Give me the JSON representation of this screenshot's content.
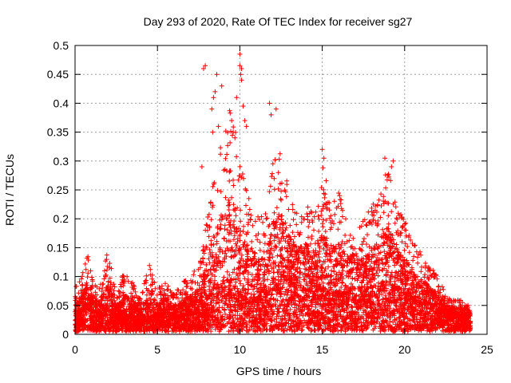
{
  "chart_data": {
    "type": "scatter",
    "title": "Day 293 of 2020, Rate Of TEC Index for receiver sg27",
    "xlabel": "GPS time / hours",
    "ylabel": "ROTI / TECUs",
    "xlim": [
      0,
      25
    ],
    "ylim": [
      0,
      0.5
    ],
    "xticks": [
      0,
      5,
      10,
      15,
      20,
      25
    ],
    "yticks": [
      0,
      0.05,
      0.1,
      0.15,
      0.2,
      0.25,
      0.3,
      0.35,
      0.4,
      0.45,
      0.5
    ],
    "xtick_labels": [
      "0",
      "5",
      "10",
      "15",
      "20",
      "25"
    ],
    "ytick_labels": [
      "0",
      "0.05",
      "0.1",
      "0.15",
      "0.2",
      "0.25",
      "0.3",
      "0.35",
      "0.4",
      "0.45",
      "0.5"
    ],
    "grid": true,
    "marker": "+",
    "series_color": "#ff0000",
    "envelope": {
      "x": [
        0.0,
        0.5,
        0.8,
        1.0,
        1.5,
        2.0,
        2.5,
        3.0,
        3.5,
        4.0,
        4.5,
        5.0,
        5.5,
        6.0,
        6.5,
        7.0,
        7.5,
        7.8,
        8.0,
        8.5,
        9.0,
        9.5,
        10.0,
        10.5,
        11.0,
        11.5,
        12.0,
        12.5,
        13.0,
        13.5,
        14.0,
        14.5,
        15.0,
        15.5,
        16.0,
        16.5,
        17.0,
        17.5,
        18.0,
        18.5,
        19.0,
        19.5,
        20.0,
        20.5,
        21.0,
        21.5,
        22.0,
        22.5,
        23.0,
        23.5,
        24.0
      ],
      "y_max": [
        0.08,
        0.11,
        0.14,
        0.1,
        0.08,
        0.15,
        0.07,
        0.11,
        0.09,
        0.06,
        0.13,
        0.08,
        0.09,
        0.07,
        0.09,
        0.1,
        0.12,
        0.16,
        0.2,
        0.28,
        0.35,
        0.4,
        0.3,
        0.24,
        0.22,
        0.2,
        0.3,
        0.32,
        0.25,
        0.22,
        0.24,
        0.2,
        0.31,
        0.22,
        0.25,
        0.2,
        0.21,
        0.2,
        0.22,
        0.25,
        0.29,
        0.22,
        0.2,
        0.16,
        0.14,
        0.12,
        0.1,
        0.07,
        0.06,
        0.06,
        0.05
      ],
      "y_typical": [
        0.03,
        0.04,
        0.06,
        0.04,
        0.03,
        0.04,
        0.03,
        0.03,
        0.03,
        0.025,
        0.03,
        0.03,
        0.035,
        0.03,
        0.03,
        0.035,
        0.04,
        0.05,
        0.06,
        0.08,
        0.09,
        0.09,
        0.07,
        0.06,
        0.06,
        0.06,
        0.09,
        0.1,
        0.09,
        0.08,
        0.08,
        0.07,
        0.08,
        0.07,
        0.07,
        0.07,
        0.07,
        0.07,
        0.08,
        0.08,
        0.09,
        0.08,
        0.07,
        0.06,
        0.05,
        0.05,
        0.04,
        0.03,
        0.03,
        0.03,
        0.03
      ]
    },
    "outliers": [
      [
        7.8,
        0.46
      ],
      [
        7.9,
        0.465
      ],
      [
        7.7,
        0.29
      ],
      [
        8.6,
        0.45
      ],
      [
        8.9,
        0.43
      ],
      [
        8.5,
        0.42
      ],
      [
        8.4,
        0.41
      ],
      [
        8.3,
        0.39
      ],
      [
        8.7,
        0.36
      ],
      [
        8.35,
        0.35
      ],
      [
        9.5,
        0.37
      ],
      [
        9.6,
        0.35
      ],
      [
        9.7,
        0.34
      ],
      [
        9.8,
        0.41
      ],
      [
        10.0,
        0.485
      ],
      [
        10.0,
        0.465
      ],
      [
        10.1,
        0.46
      ],
      [
        10.05,
        0.45
      ],
      [
        10.1,
        0.44
      ],
      [
        10.2,
        0.395
      ],
      [
        10.3,
        0.37
      ],
      [
        10.4,
        0.36
      ],
      [
        11.8,
        0.4
      ],
      [
        11.9,
        0.38
      ],
      [
        12.2,
        0.39
      ],
      [
        15.0,
        0.32
      ],
      [
        15.1,
        0.305
      ],
      [
        18.8,
        0.305
      ],
      [
        19.3,
        0.3
      ],
      [
        19.2,
        0.29
      ]
    ]
  }
}
